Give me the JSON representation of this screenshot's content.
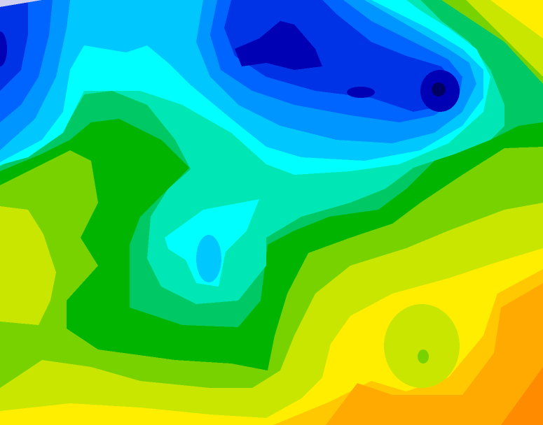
{
  "map": {
    "type": "filled-contour",
    "colors": {
      "dark_orange": "#ff8c00",
      "orange": "#ffaa00",
      "gold": "#ffc800",
      "yellow": "#ffee00",
      "yellow_green": "#c8e600",
      "lime": "#78d200",
      "green": "#00b400",
      "medium_green": "#00c864",
      "aquamarine": "#00e6b4",
      "cyan": "#00ffff",
      "light_blue": "#00c8ff",
      "sky_blue": "#0096ff",
      "blue": "#0064ff",
      "dark_blue": "#0032e6",
      "navy": "#0000b4",
      "deep_navy": "#000064",
      "lavender": "#d0d0f0"
    }
  }
}
